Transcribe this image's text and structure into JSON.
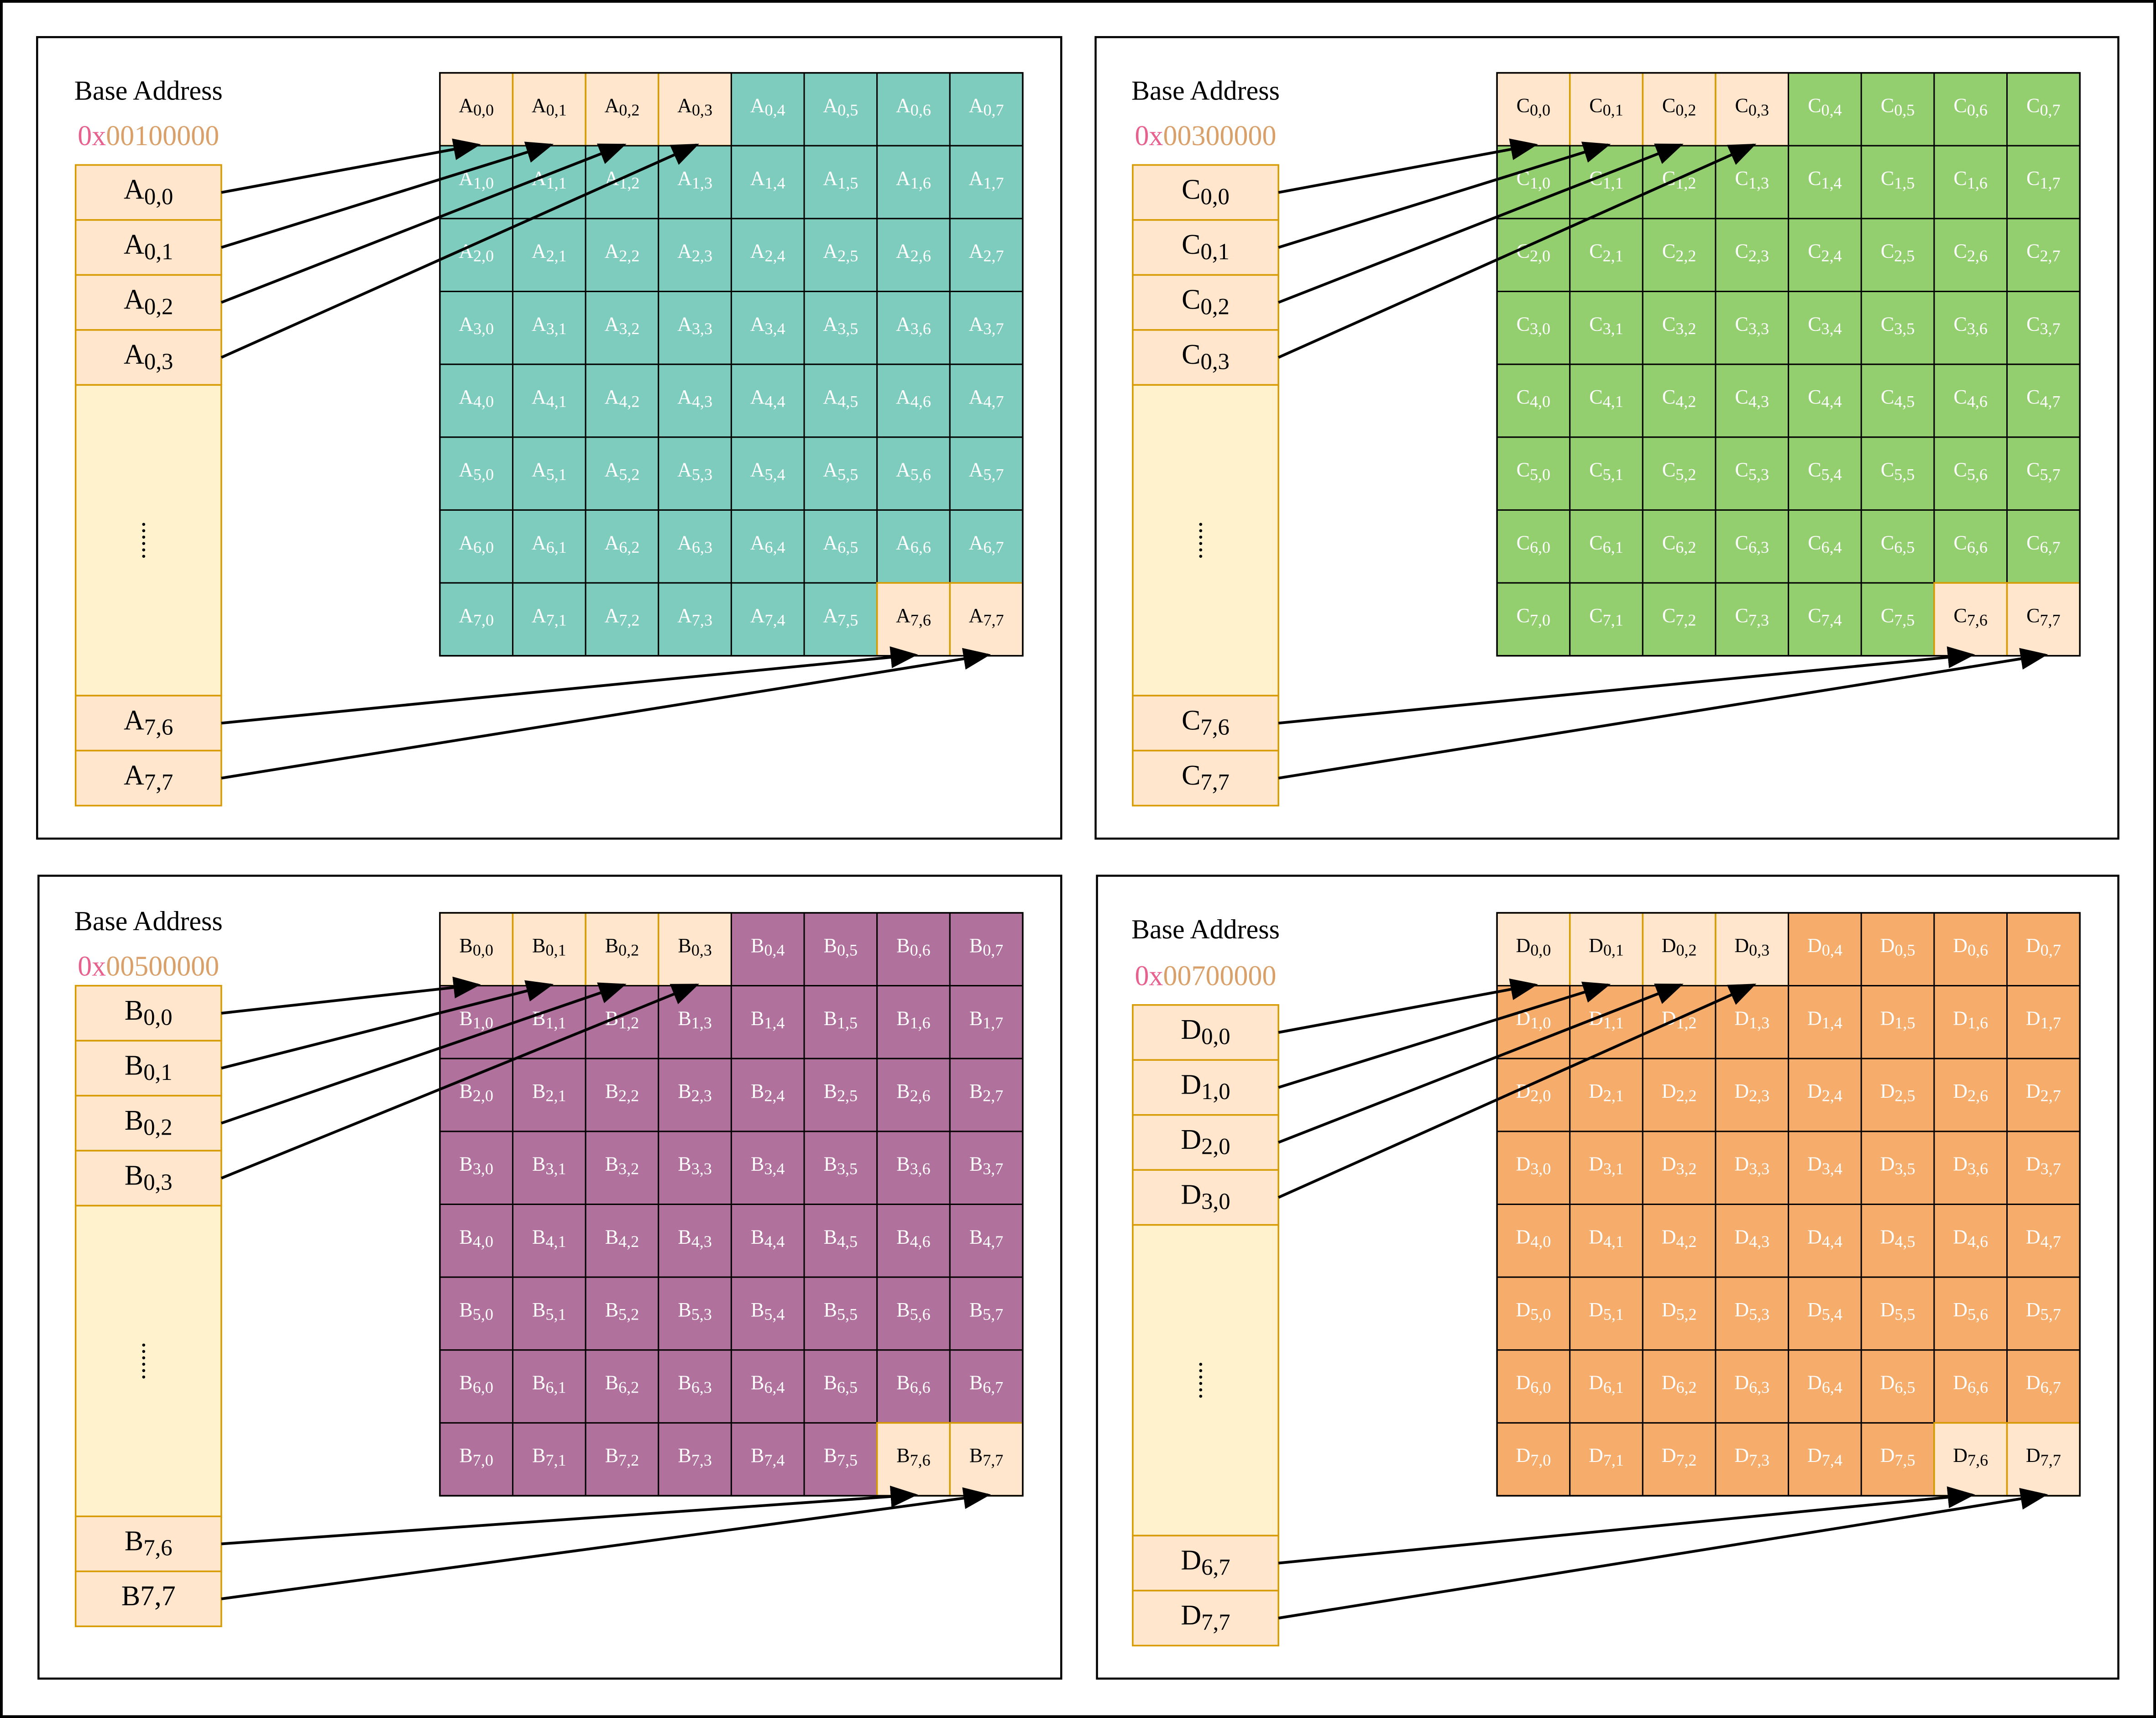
{
  "panels": [
    {
      "letter": "A",
      "base_label": "Base Address",
      "address_prefix": "0x",
      "address_digits": "00100000",
      "grid_color": "#7ECCBD",
      "memory_items": [
        {
          "main": "A",
          "sub": "0,0"
        },
        {
          "main": "A",
          "sub": "0,1"
        },
        {
          "main": "A",
          "sub": "0,2"
        },
        {
          "main": "A",
          "sub": "0,3"
        },
        {
          "main": "A",
          "sub": "7,6"
        },
        {
          "main": "A",
          "sub": "7,7"
        }
      ]
    },
    {
      "letter": "C",
      "base_label": "Base Address",
      "address_prefix": "0x",
      "address_digits": "00300000",
      "grid_color": "#93CE6F",
      "memory_items": [
        {
          "main": "C",
          "sub": "0,0"
        },
        {
          "main": "C",
          "sub": "0,1"
        },
        {
          "main": "C",
          "sub": "0,2"
        },
        {
          "main": "C",
          "sub": "0,3"
        },
        {
          "main": "C",
          "sub": "7,6"
        },
        {
          "main": "C",
          "sub": "7,7"
        }
      ]
    },
    {
      "letter": "B",
      "base_label": "Base Address",
      "address_prefix": "0x",
      "address_digits": "00500000",
      "grid_color": "#B0719C",
      "memory_items": [
        {
          "main": "B",
          "sub": "0,0"
        },
        {
          "main": "B",
          "sub": "0,1"
        },
        {
          "main": "B",
          "sub": "0,2"
        },
        {
          "main": "B",
          "sub": "0,3"
        },
        {
          "main": "B",
          "sub": "7,6"
        },
        {
          "main": "B7,7",
          "sub": ""
        }
      ]
    },
    {
      "letter": "D",
      "base_label": "Base Address",
      "address_prefix": "0x",
      "address_digits": "00700000",
      "grid_color": "#F6AC6B",
      "memory_items": [
        {
          "main": "D",
          "sub": "0,0"
        },
        {
          "main": "D",
          "sub": "1,0"
        },
        {
          "main": "D",
          "sub": "2,0"
        },
        {
          "main": "D",
          "sub": "3,0"
        },
        {
          "main": "D",
          "sub": "6,7"
        },
        {
          "main": "D",
          "sub": "7,7"
        }
      ]
    }
  ],
  "ellipsis": "......",
  "colors": {
    "highlight_cell": "#FFE6CC",
    "memory_fill": "#FFF2CC",
    "memory_stroke": "#D79B00",
    "address_prefix": "#E8608F",
    "address_digits": "#D9A06A",
    "grid_line": "#000000",
    "arrow": "#000000"
  }
}
